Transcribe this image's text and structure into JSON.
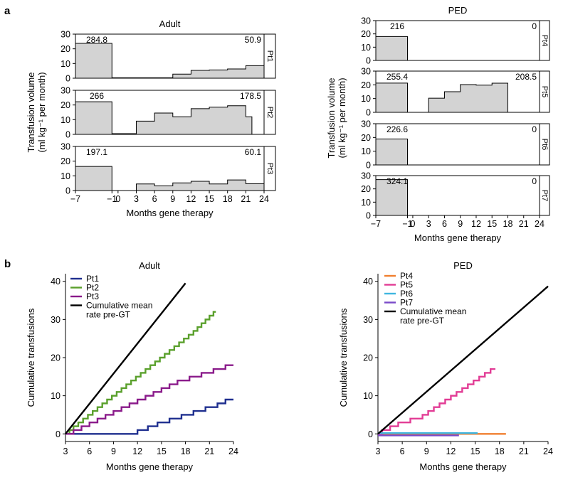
{
  "panel_labels": {
    "a": "a",
    "b": "b"
  },
  "chart_data": [
    {
      "id": "a_adult",
      "type": "area",
      "title": "Adult",
      "xlabel": "Months gene therapy",
      "ylabel_line1": "Transfusion volume",
      "ylabel_line2": "(ml kg⁻¹ per month)",
      "xlim": [
        -7,
        24
      ],
      "ylim": [
        0,
        30
      ],
      "xticks": [
        -7,
        -1,
        0,
        3,
        6,
        9,
        12,
        15,
        18,
        21,
        24
      ],
      "xtick_labels": [
        "−7",
        "−1",
        "0",
        "3",
        "6",
        "9",
        "12",
        "15",
        "18",
        "21",
        "24"
      ],
      "yticks": [
        0,
        10,
        20,
        30
      ],
      "series": [
        {
          "name": "Pt1",
          "pre_label": "284.8",
          "post_label": "50.9",
          "steps": [
            [
              -7,
              23.7
            ],
            [
              -1,
              0.3
            ],
            [
              9,
              2.8
            ],
            [
              12,
              5.3
            ],
            [
              15,
              5.6
            ],
            [
              18,
              6.3
            ],
            [
              21,
              8.5
            ],
            [
              24,
              8.5
            ]
          ]
        },
        {
          "name": "Pt2",
          "pre_label": "266",
          "post_label": "178.5",
          "steps": [
            [
              -7,
              22.2
            ],
            [
              -1,
              0.5
            ],
            [
              3,
              9
            ],
            [
              6,
              14.5
            ],
            [
              9,
              12
            ],
            [
              12,
              17.5
            ],
            [
              15,
              18.5
            ],
            [
              18,
              19.5
            ],
            [
              21,
              12
            ],
            [
              22,
              12
            ]
          ]
        },
        {
          "name": "Pt3",
          "pre_label": "197.1",
          "post_label": "60.1",
          "steps": [
            [
              -7,
              16.4
            ],
            [
              -1,
              0
            ],
            [
              3,
              4.5
            ],
            [
              6,
              3.2
            ],
            [
              9,
              5.2
            ],
            [
              12,
              6.3
            ],
            [
              15,
              4.5
            ],
            [
              18,
              7.2
            ],
            [
              21,
              4.6
            ],
            [
              24,
              4.6
            ]
          ]
        }
      ]
    },
    {
      "id": "a_ped",
      "type": "area",
      "title": "PED",
      "xlabel": "Months gene therapy",
      "ylabel_line1": "Transfusion volume",
      "ylabel_line2": "(ml kg⁻¹ per month)",
      "xlim": [
        -7,
        24
      ],
      "ylim": [
        0,
        30
      ],
      "xticks": [
        -7,
        -1,
        0,
        3,
        6,
        9,
        12,
        15,
        18,
        21,
        24
      ],
      "xtick_labels": [
        "−7",
        "−1",
        "0",
        "3",
        "6",
        "9",
        "12",
        "15",
        "18",
        "21",
        "24"
      ],
      "yticks": [
        0,
        10,
        20,
        30
      ],
      "series": [
        {
          "name": "Pt4",
          "pre_label": "216",
          "post_label": "0",
          "steps": [
            [
              -7,
              18
            ],
            [
              -1,
              0
            ],
            [
              24,
              0
            ]
          ]
        },
        {
          "name": "Pt5",
          "pre_label": "255.4",
          "post_label": "208.5",
          "steps": [
            [
              -7,
              21.3
            ],
            [
              -1,
              0
            ],
            [
              3,
              10.3
            ],
            [
              6,
              15
            ],
            [
              9,
              20.2
            ],
            [
              12,
              19.8
            ],
            [
              15,
              21.2
            ],
            [
              18,
              0
            ],
            [
              24,
              0
            ]
          ]
        },
        {
          "name": "Pt6",
          "pre_label": "226.6",
          "post_label": "0",
          "steps": [
            [
              -7,
              18.9
            ],
            [
              -1,
              0
            ],
            [
              24,
              0
            ]
          ]
        },
        {
          "name": "Pt7",
          "pre_label": "324.1",
          "post_label": "0",
          "steps": [
            [
              -7,
              27
            ],
            [
              -1,
              0
            ],
            [
              24,
              0
            ]
          ]
        }
      ]
    },
    {
      "id": "b_adult",
      "type": "line",
      "title": "Adult",
      "xlabel": "Months gene therapy",
      "ylabel": "Cumulative transfusions",
      "xlim": [
        3,
        24
      ],
      "ylim": [
        -2,
        42
      ],
      "xticks": [
        3,
        6,
        9,
        12,
        15,
        18,
        21,
        24
      ],
      "yticks": [
        0,
        10,
        20,
        30,
        40
      ],
      "legend": "top-left",
      "series": [
        {
          "name": "Pt1",
          "color": "#1f2f8f",
          "kind": "step",
          "end_x": 24,
          "points": [
            [
              12,
              1
            ],
            [
              13.3,
              2
            ],
            [
              14.5,
              3
            ],
            [
              16,
              4
            ],
            [
              17.5,
              5
            ],
            [
              19,
              6
            ],
            [
              20.5,
              7
            ],
            [
              22,
              8
            ],
            [
              23,
              9
            ]
          ]
        },
        {
          "name": "Pt2",
          "color": "#5aa02c",
          "kind": "step",
          "end_x": 21.8,
          "points": [
            [
              3.5,
              1
            ],
            [
              4,
              2
            ],
            [
              4.6,
              3
            ],
            [
              5.2,
              4
            ],
            [
              5.8,
              5
            ],
            [
              6.4,
              6
            ],
            [
              7,
              7
            ],
            [
              7.6,
              8
            ],
            [
              8.2,
              9
            ],
            [
              8.8,
              10
            ],
            [
              9.4,
              11
            ],
            [
              10,
              12
            ],
            [
              10.6,
              13
            ],
            [
              11.2,
              14
            ],
            [
              11.8,
              15
            ],
            [
              12.4,
              16
            ],
            [
              13,
              17
            ],
            [
              13.6,
              18
            ],
            [
              14.2,
              19
            ],
            [
              14.8,
              20
            ],
            [
              15.4,
              21
            ],
            [
              16,
              22
            ],
            [
              16.6,
              23
            ],
            [
              17.2,
              24
            ],
            [
              17.8,
              25
            ],
            [
              18.4,
              26
            ],
            [
              19,
              27
            ],
            [
              19.5,
              28
            ],
            [
              20,
              29
            ],
            [
              20.5,
              30
            ],
            [
              21,
              31
            ],
            [
              21.5,
              32
            ]
          ]
        },
        {
          "name": "Pt3",
          "color": "#8a1a8a",
          "kind": "step",
          "end_x": 24,
          "points": [
            [
              4,
              1
            ],
            [
              5,
              2
            ],
            [
              6,
              3
            ],
            [
              7,
              4
            ],
            [
              8,
              5
            ],
            [
              9,
              6
            ],
            [
              10,
              7
            ],
            [
              11,
              8
            ],
            [
              12,
              9
            ],
            [
              13,
              10
            ],
            [
              14,
              11
            ],
            [
              15,
              12
            ],
            [
              16,
              13
            ],
            [
              17,
              14
            ],
            [
              18.5,
              15
            ],
            [
              20,
              16
            ],
            [
              21.5,
              17
            ],
            [
              23,
              18
            ]
          ]
        },
        {
          "name": "Cumulative mean rate pre-GT",
          "color": "#000000",
          "kind": "line",
          "points": [
            [
              3,
              0
            ],
            [
              18,
              39.5
            ]
          ]
        }
      ]
    },
    {
      "id": "b_ped",
      "type": "line",
      "title": "PED",
      "xlabel": "Months gene therapy",
      "ylabel": "Cumulative transfusions",
      "xlim": [
        3,
        24
      ],
      "ylim": [
        -2,
        42
      ],
      "xticks": [
        3,
        6,
        9,
        12,
        15,
        18,
        21,
        24
      ],
      "yticks": [
        0,
        10,
        20,
        30,
        40
      ],
      "legend": "top-left",
      "series": [
        {
          "name": "Pt4",
          "color": "#f07f2f",
          "kind": "line",
          "points": [
            [
              3,
              0
            ],
            [
              18.8,
              0
            ]
          ]
        },
        {
          "name": "Pt5",
          "color": "#e23c95",
          "kind": "step",
          "end_x": 17.5,
          "points": [
            [
              3.5,
              1
            ],
            [
              4.5,
              2
            ],
            [
              5.5,
              3
            ],
            [
              7,
              4
            ],
            [
              8.5,
              5
            ],
            [
              9.2,
              6
            ],
            [
              9.9,
              7
            ],
            [
              10.6,
              8
            ],
            [
              11.3,
              9
            ],
            [
              12,
              10
            ],
            [
              12.7,
              11
            ],
            [
              13.4,
              12
            ],
            [
              14.1,
              13
            ],
            [
              14.8,
              14
            ],
            [
              15.5,
              15
            ],
            [
              16.2,
              16
            ],
            [
              16.9,
              17
            ]
          ]
        },
        {
          "name": "Pt6",
          "color": "#3fb6e0",
          "kind": "line",
          "points": [
            [
              3,
              0.2
            ],
            [
              15.3,
              0.2
            ]
          ]
        },
        {
          "name": "Pt7",
          "color": "#7a4ac9",
          "kind": "line",
          "points": [
            [
              3,
              -0.4
            ],
            [
              13,
              -0.4
            ]
          ]
        },
        {
          "name": "Cumulative mean rate pre-GT",
          "color": "#000000",
          "kind": "line",
          "points": [
            [
              3,
              0
            ],
            [
              24,
              38.7
            ]
          ]
        }
      ]
    }
  ],
  "legend_labels": {
    "b_adult": [
      "Pt1",
      "Pt2",
      "Pt3",
      "Cumulative mean",
      "rate pre-GT"
    ],
    "b_ped": [
      "Pt4",
      "Pt5",
      "Pt6",
      "Pt7",
      "Cumulative mean",
      "rate pre-GT"
    ]
  }
}
